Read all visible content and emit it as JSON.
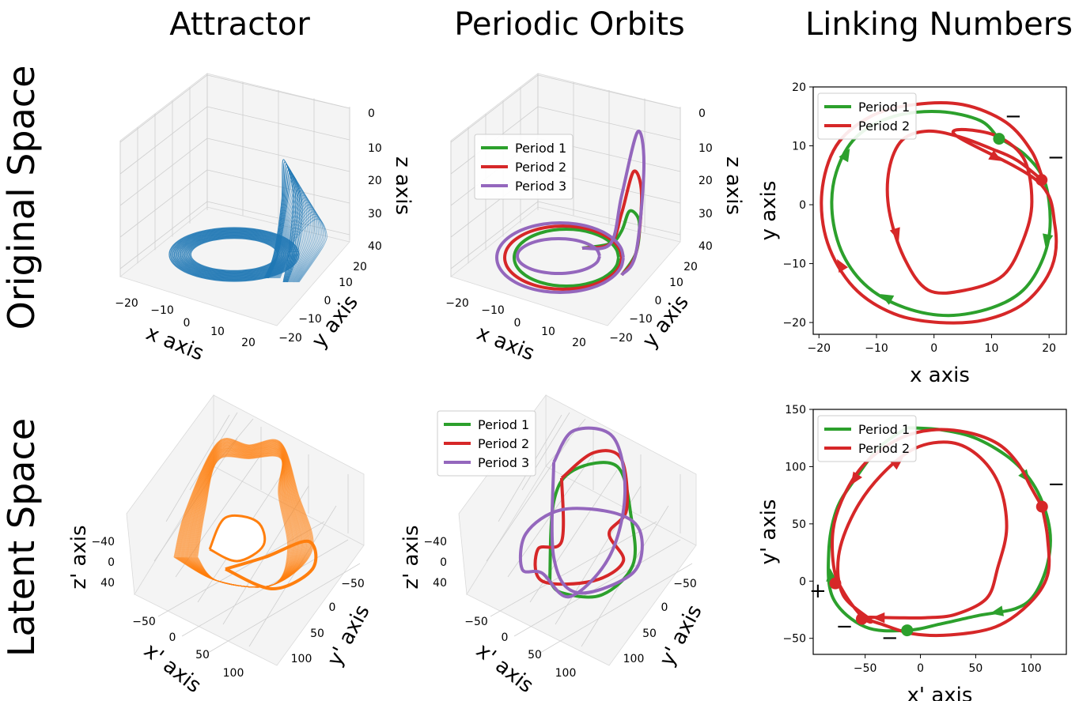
{
  "column_titles": [
    "Attractor",
    "Periodic Orbits",
    "Linking Numbers"
  ],
  "row_titles": [
    "Original Space",
    "Latent Space"
  ],
  "colors": {
    "attractor_original": "#1f77b4",
    "attractor_latent": "#ff7f0e",
    "period1": "#2ca02c",
    "period2": "#d62728",
    "period3": "#9467bd"
  },
  "chart_data": [
    {
      "id": "orig-attractor",
      "type": "scatter",
      "projection": "3d",
      "xlabel": "x axis",
      "ylabel": "y axis",
      "zlabel": "z axis",
      "xticks": [
        "−20",
        "−10",
        "0",
        "10",
        "20"
      ],
      "yticks": [
        "−20",
        "−10",
        "0",
        "10",
        "20"
      ],
      "zticks": [
        "0",
        "10",
        "20",
        "30",
        "40"
      ],
      "xlim": [
        -22,
        22
      ],
      "ylim": [
        -22,
        22
      ],
      "zlim": [
        0,
        40
      ],
      "series": [
        {
          "color": "#1f77b4"
        }
      ]
    },
    {
      "id": "orig-orbits",
      "type": "line",
      "projection": "3d",
      "xlabel": "x axis",
      "ylabel": "y axis",
      "zlabel": "z axis",
      "xticks": [
        "−20",
        "−10",
        "0",
        "10",
        "20"
      ],
      "yticks": [
        "−20",
        "−10",
        "0",
        "10",
        "20"
      ],
      "zticks": [
        "0",
        "10",
        "20",
        "30",
        "40"
      ],
      "legend": [
        "Period 1",
        "Period 2",
        "Period 3"
      ],
      "series": [
        {
          "name": "Period 1",
          "color": "#2ca02c"
        },
        {
          "name": "Period 2",
          "color": "#d62728"
        },
        {
          "name": "Period 3",
          "color": "#9467bd"
        }
      ]
    },
    {
      "id": "orig-linking",
      "type": "line",
      "xlabel": "x axis",
      "ylabel": "y axis",
      "xlim": [
        -21,
        23
      ],
      "ylim": [
        -22,
        20
      ],
      "xticks": [
        -20,
        -10,
        0,
        10,
        20
      ],
      "yticks": [
        -20,
        -10,
        0,
        10,
        20
      ],
      "xticklabels": [
        "−20",
        "−10",
        "0",
        "10",
        "20"
      ],
      "yticklabels": [
        "−20",
        "−10",
        "0",
        "10",
        "20"
      ],
      "legend": [
        "Period 1",
        "Period 2"
      ],
      "legend_loc": "upper left",
      "series": [
        {
          "name": "Period 1",
          "color": "#2ca02c",
          "x": [
            11.0,
            15.8,
            19.2,
            20.2,
            19.0,
            15.5,
            10.0,
            2.5,
            -5.0,
            -11.5,
            -15.8,
            -17.7,
            -17.0,
            -13.5,
            -7.0,
            1.0,
            8.0,
            11.0
          ],
          "y": [
            11.5,
            8.5,
            4.0,
            -3.0,
            -9.0,
            -14.5,
            -17.5,
            -18.8,
            -17.5,
            -14.0,
            -8.5,
            -1.5,
            5.5,
            11.5,
            15.0,
            15.8,
            14.3,
            11.5
          ]
        },
        {
          "name": "Period 2",
          "color": "#d62728",
          "x": [
            19.0,
            14.5,
            10.0,
            4.5,
            -1.0,
            -5.5,
            -7.8,
            -7.8,
            -5.2,
            -1.0,
            5.5,
            12.0,
            15.5,
            17.0,
            15.5,
            10.0,
            3.5,
            18.0,
            21.0,
            20.5,
            16.0,
            9.0,
            1.0,
            -7.0,
            -14.0,
            -18.5,
            -19.5,
            -17.0,
            -11.0,
            -3.5,
            5.0,
            12.5,
            17.0,
            19.0
          ],
          "y": [
            4.0,
            7.5,
            9.5,
            11.5,
            12.5,
            11.0,
            6.0,
            -1.0,
            -9.0,
            -14.5,
            -14.5,
            -12.0,
            -6.0,
            0.5,
            8.0,
            12.0,
            12.0,
            4.0,
            -3.5,
            -10.5,
            -16.5,
            -19.5,
            -20.0,
            -18.5,
            -14.0,
            -6.5,
            2.0,
            10.0,
            15.0,
            17.0,
            17.0,
            14.0,
            9.0,
            4.0
          ]
        }
      ],
      "markers": [
        {
          "series": "Period 1",
          "x": 11.3,
          "y": 11.2,
          "sign": "−"
        },
        {
          "series": "Period 2",
          "x": 18.7,
          "y": 4.2,
          "sign": "−"
        }
      ]
    },
    {
      "id": "latent-attractor",
      "type": "scatter",
      "projection": "3d",
      "xlabel": "x' axis",
      "ylabel": "y' axis",
      "zlabel": "z' axis",
      "xticks": [
        "−50",
        "0",
        "50",
        "100"
      ],
      "yticks": [
        "−50",
        "0",
        "50",
        "100"
      ],
      "zticks": [
        "−40",
        "0",
        "40"
      ],
      "series": [
        {
          "color": "#ff7f0e"
        }
      ]
    },
    {
      "id": "latent-orbits",
      "type": "line",
      "projection": "3d",
      "xlabel": "x' axis",
      "ylabel": "y' axis",
      "zlabel": "z' axis",
      "xticks": [
        "−50",
        "0",
        "50",
        "100"
      ],
      "yticks": [
        "−50",
        "0",
        "50",
        "100"
      ],
      "zticks": [
        "−40",
        "0",
        "40"
      ],
      "legend": [
        "Period 1",
        "Period 2",
        "Period 3"
      ],
      "series": [
        {
          "name": "Period 1",
          "color": "#2ca02c"
        },
        {
          "name": "Period 2",
          "color": "#d62728"
        },
        {
          "name": "Period 3",
          "color": "#9467bd"
        }
      ]
    },
    {
      "id": "latent-linking",
      "type": "line",
      "xlabel": "x' axis",
      "ylabel": "y' axis",
      "xlim": [
        -97,
        132
      ],
      "ylim": [
        -64,
        150
      ],
      "xticks": [
        -50,
        0,
        50,
        100
      ],
      "yticks": [
        -50,
        0,
        50,
        100,
        150
      ],
      "xticklabels": [
        "−50",
        "0",
        "50",
        "100"
      ],
      "yticklabels": [
        "−50",
        "0",
        "50",
        "100",
        "150"
      ],
      "legend": [
        "Period 1",
        "Period 2"
      ],
      "legend_loc": "upper left",
      "series": [
        {
          "name": "Period 1",
          "color": "#2ca02c",
          "x": [
            -12,
            20,
            52,
            85,
            106,
            117,
            115,
            103,
            86,
            53,
            20,
            -12,
            -50,
            -79,
            -83,
            -76,
            -60,
            -37,
            -12
          ],
          "y": [
            134,
            132,
            124,
            104,
            78,
            45,
            15,
            -12,
            -24,
            -30,
            -37,
            -43,
            -40,
            -15,
            25,
            62,
            88,
            117,
            134
          ]
        },
        {
          "name": "Period 2",
          "color": "#d62728",
          "x": [
            110,
            100,
            88,
            70,
            42,
            10,
            -20,
            -50,
            -69,
            -79,
            -78,
            -68,
            -52,
            -45,
            -70,
            -74,
            -60,
            -36,
            -5,
            28,
            54,
            72,
            78,
            70,
            60,
            32,
            5,
            -25,
            -50,
            -34,
            -7,
            27,
            68,
            98,
            115,
            115,
            110
          ],
          "y": [
            65,
            82,
            103,
            120,
            130,
            132,
            124,
            103,
            75,
            45,
            10,
            -12,
            -32,
            -34,
            -12,
            22,
            60,
            92,
            116,
            121,
            108,
            82,
            46,
            12,
            -15,
            -29,
            -32,
            -32,
            -32,
            -38,
            -46,
            -47,
            -40,
            -20,
            5,
            38,
            65
          ]
        }
      ],
      "markers": [
        {
          "series": "Period 2",
          "x": 110,
          "y": 65,
          "sign": "−"
        },
        {
          "series": "Period 2",
          "x": -77,
          "y": -2,
          "sign": "+"
        },
        {
          "series": "Period 2",
          "x": -53,
          "y": -33,
          "sign": "−"
        },
        {
          "series": "Period 1",
          "x": -12,
          "y": -43,
          "sign": "−"
        }
      ]
    }
  ]
}
